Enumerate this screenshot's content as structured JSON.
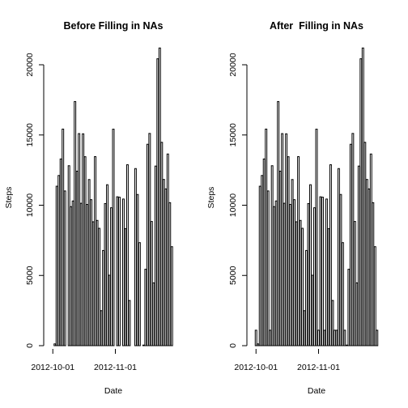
{
  "chart_data": [
    {
      "type": "bar",
      "title": "Before Filling in NAs",
      "xlabel": "Date",
      "ylabel": "Steps",
      "ylim": [
        0,
        21500
      ],
      "y_ticks": [
        0,
        5000,
        10000,
        15000,
        20000
      ],
      "x_tick_labels": [
        {
          "label": "2012-10-01",
          "index": 0
        },
        {
          "label": "2012-11-01",
          "index": 31
        }
      ],
      "categories": [
        "2012-10-01",
        "2012-10-02",
        "2012-10-03",
        "2012-10-04",
        "2012-10-05",
        "2012-10-06",
        "2012-10-07",
        "2012-10-08",
        "2012-10-09",
        "2012-10-10",
        "2012-10-11",
        "2012-10-12",
        "2012-10-13",
        "2012-10-14",
        "2012-10-15",
        "2012-10-16",
        "2012-10-17",
        "2012-10-18",
        "2012-10-19",
        "2012-10-20",
        "2012-10-21",
        "2012-10-22",
        "2012-10-23",
        "2012-10-24",
        "2012-10-25",
        "2012-10-26",
        "2012-10-27",
        "2012-10-28",
        "2012-10-29",
        "2012-10-30",
        "2012-10-31",
        "2012-11-01",
        "2012-11-02",
        "2012-11-03",
        "2012-11-04",
        "2012-11-05",
        "2012-11-06",
        "2012-11-07",
        "2012-11-08",
        "2012-11-09",
        "2012-11-10",
        "2012-11-11",
        "2012-11-12",
        "2012-11-13",
        "2012-11-14",
        "2012-11-15",
        "2012-11-16",
        "2012-11-17",
        "2012-11-18",
        "2012-11-19",
        "2012-11-20",
        "2012-11-21",
        "2012-11-22",
        "2012-11-23",
        "2012-11-24",
        "2012-11-25",
        "2012-11-26",
        "2012-11-27",
        "2012-11-28",
        "2012-11-29",
        "2012-11-30"
      ],
      "values": [
        0,
        126,
        11352,
        12116,
        13294,
        15420,
        11015,
        0,
        12811,
        9900,
        10304,
        17382,
        12426,
        15098,
        10139,
        15084,
        13452,
        10056,
        11829,
        10395,
        8821,
        13460,
        8918,
        8355,
        2492,
        6778,
        10119,
        11458,
        5018,
        9819,
        15414,
        0,
        10600,
        10571,
        0,
        10439,
        8334,
        12883,
        3219,
        0,
        0,
        12608,
        10765,
        7336,
        0,
        41,
        5441,
        14339,
        15110,
        8841,
        4472,
        12787,
        20427,
        21194,
        14478,
        11834,
        11162,
        13646,
        10183,
        7047,
        0
      ]
    },
    {
      "type": "bar",
      "title": "After  Filling in NAs",
      "xlabel": "Date",
      "ylabel": "Steps",
      "ylim": [
        0,
        21500
      ],
      "y_ticks": [
        0,
        5000,
        10000,
        15000,
        20000
      ],
      "x_tick_labels": [
        {
          "label": "2012-10-01",
          "index": 0
        },
        {
          "label": "2012-11-01",
          "index": 31
        }
      ],
      "categories": [
        "2012-10-01",
        "2012-10-02",
        "2012-10-03",
        "2012-10-04",
        "2012-10-05",
        "2012-10-06",
        "2012-10-07",
        "2012-10-08",
        "2012-10-09",
        "2012-10-10",
        "2012-10-11",
        "2012-10-12",
        "2012-10-13",
        "2012-10-14",
        "2012-10-15",
        "2012-10-16",
        "2012-10-17",
        "2012-10-18",
        "2012-10-19",
        "2012-10-20",
        "2012-10-21",
        "2012-10-22",
        "2012-10-23",
        "2012-10-24",
        "2012-10-25",
        "2012-10-26",
        "2012-10-27",
        "2012-10-28",
        "2012-10-29",
        "2012-10-30",
        "2012-10-31",
        "2012-11-01",
        "2012-11-02",
        "2012-11-03",
        "2012-11-04",
        "2012-11-05",
        "2012-11-06",
        "2012-11-07",
        "2012-11-08",
        "2012-11-09",
        "2012-11-10",
        "2012-11-11",
        "2012-11-12",
        "2012-11-13",
        "2012-11-14",
        "2012-11-15",
        "2012-11-16",
        "2012-11-17",
        "2012-11-18",
        "2012-11-19",
        "2012-11-20",
        "2012-11-21",
        "2012-11-22",
        "2012-11-23",
        "2012-11-24",
        "2012-11-25",
        "2012-11-26",
        "2012-11-27",
        "2012-11-28",
        "2012-11-29",
        "2012-11-30"
      ],
      "values": [
        1100,
        126,
        11352,
        12116,
        13294,
        15420,
        11015,
        1100,
        12811,
        9900,
        10304,
        17382,
        12426,
        15098,
        10139,
        15084,
        13452,
        10056,
        11829,
        10395,
        8821,
        13460,
        8918,
        8355,
        2492,
        6778,
        10119,
        11458,
        5018,
        9819,
        15414,
        1100,
        10600,
        10571,
        1100,
        10439,
        8334,
        12883,
        3219,
        1100,
        1100,
        12608,
        10765,
        7336,
        1100,
        41,
        5441,
        14339,
        15110,
        8841,
        4472,
        12787,
        20427,
        21194,
        14478,
        11834,
        11162,
        13646,
        10183,
        7047,
        1100
      ]
    }
  ]
}
